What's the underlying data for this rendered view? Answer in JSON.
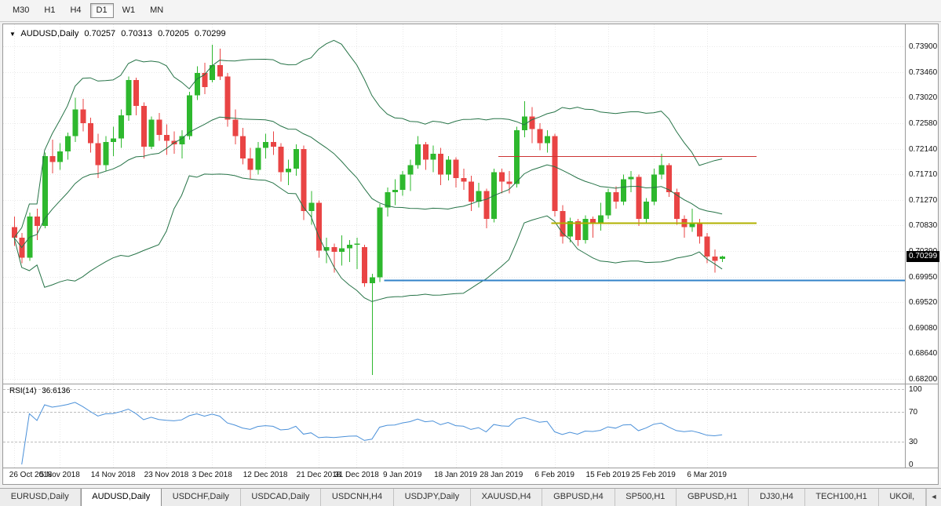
{
  "toolbar": {
    "timeframes": [
      {
        "label": "M30",
        "active": false
      },
      {
        "label": "H1",
        "active": false
      },
      {
        "label": "H4",
        "active": false
      },
      {
        "label": "D1",
        "active": true
      },
      {
        "label": "W1",
        "active": false
      },
      {
        "label": "MN",
        "active": false
      }
    ]
  },
  "chart_title": {
    "dropdown_icon": "▼",
    "symbol": "AUDUSD,Daily",
    "open": "0.70257",
    "high": "0.70313",
    "low": "0.70205",
    "close": "0.70299"
  },
  "chart_data": {
    "type": "candlestick",
    "symbol": "AUDUSD",
    "timeframe": "Daily",
    "price_range": {
      "top": 0.739,
      "bottom": 0.682
    },
    "price_axis_labels": [
      "0.73900",
      "0.73460",
      "0.73020",
      "0.72580",
      "0.72140",
      "0.71710",
      "0.71270",
      "0.70830",
      "0.70390",
      "0.69950",
      "0.69520",
      "0.69080",
      "0.68640",
      "0.68200"
    ],
    "current_price": "0.70299",
    "x_labels": [
      [
        0,
        "26 Oct 2018"
      ],
      [
        6,
        "5 Nov 2018"
      ],
      [
        13,
        "14 Nov 2018"
      ],
      [
        20,
        "23 Nov 2018"
      ],
      [
        26,
        "3 Dec 2018"
      ],
      [
        33,
        "12 Dec 2018"
      ],
      [
        40,
        "21 Dec 2018"
      ],
      [
        45,
        "31 Dec 2018"
      ],
      [
        51,
        "9 Jan 2019"
      ],
      [
        58,
        "18 Jan 2019"
      ],
      [
        64,
        "28 Jan 2019"
      ],
      [
        71,
        "6 Feb 2019"
      ],
      [
        78,
        "15 Feb 2019"
      ],
      [
        84,
        "25 Feb 2019"
      ],
      [
        91,
        "6 Mar 2019"
      ]
    ],
    "ohlc": [
      [
        0.708,
        0.7098,
        0.7048,
        0.7062
      ],
      [
        0.7062,
        0.707,
        0.7018,
        0.7028
      ],
      [
        0.7028,
        0.7105,
        0.7022,
        0.7098
      ],
      [
        0.7098,
        0.7112,
        0.7058,
        0.7082
      ],
      [
        0.7082,
        0.7208,
        0.7078,
        0.7202
      ],
      [
        0.7202,
        0.723,
        0.7172,
        0.7192
      ],
      [
        0.7192,
        0.7224,
        0.7178,
        0.721
      ],
      [
        0.721,
        0.7242,
        0.7196,
        0.7236
      ],
      [
        0.7236,
        0.7302,
        0.7226,
        0.7282
      ],
      [
        0.7282,
        0.73,
        0.7244,
        0.7258
      ],
      [
        0.7258,
        0.7268,
        0.7208,
        0.7224
      ],
      [
        0.7224,
        0.724,
        0.7164,
        0.7186
      ],
      [
        0.7186,
        0.7236,
        0.7176,
        0.7226
      ],
      [
        0.7226,
        0.7252,
        0.7202,
        0.7232
      ],
      [
        0.7232,
        0.7282,
        0.7216,
        0.7272
      ],
      [
        0.7272,
        0.7338,
        0.7262,
        0.7332
      ],
      [
        0.7332,
        0.7336,
        0.7272,
        0.7288
      ],
      [
        0.7288,
        0.7294,
        0.7198,
        0.7218
      ],
      [
        0.7218,
        0.727,
        0.7214,
        0.7264
      ],
      [
        0.7264,
        0.7276,
        0.7228,
        0.7238
      ],
      [
        0.7238,
        0.7256,
        0.7204,
        0.7228
      ],
      [
        0.7228,
        0.7244,
        0.7206,
        0.7222
      ],
      [
        0.7222,
        0.7246,
        0.7198,
        0.7236
      ],
      [
        0.7236,
        0.7312,
        0.723,
        0.7306
      ],
      [
        0.7306,
        0.7356,
        0.7298,
        0.7344
      ],
      [
        0.7344,
        0.7362,
        0.7308,
        0.732
      ],
      [
        0.7332,
        0.7393,
        0.7328,
        0.7358
      ],
      [
        0.7358,
        0.7386,
        0.7332,
        0.7338
      ],
      [
        0.7338,
        0.7344,
        0.7252,
        0.7264
      ],
      [
        0.7264,
        0.7282,
        0.7222,
        0.7236
      ],
      [
        0.7236,
        0.725,
        0.7188,
        0.7198
      ],
      [
        0.7198,
        0.7216,
        0.7162,
        0.7178
      ],
      [
        0.7178,
        0.7226,
        0.717,
        0.7216
      ],
      [
        0.7216,
        0.724,
        0.7198,
        0.7226
      ],
      [
        0.7226,
        0.7244,
        0.7204,
        0.7218
      ],
      [
        0.7218,
        0.7224,
        0.7158,
        0.7174
      ],
      [
        0.7174,
        0.7196,
        0.7152,
        0.718
      ],
      [
        0.718,
        0.7222,
        0.7168,
        0.7214
      ],
      [
        0.7214,
        0.722,
        0.7092,
        0.7108
      ],
      [
        0.7108,
        0.7142,
        0.7084,
        0.7122
      ],
      [
        0.7122,
        0.7126,
        0.7028,
        0.704
      ],
      [
        0.704,
        0.7062,
        0.7018,
        0.7046
      ],
      [
        0.7046,
        0.7052,
        0.7002,
        0.7038
      ],
      [
        0.7038,
        0.7066,
        0.7014,
        0.7044
      ],
      [
        0.7044,
        0.7058,
        0.702,
        0.705
      ],
      [
        0.705,
        0.7062,
        0.7008,
        0.7052
      ],
      [
        0.7046,
        0.705,
        0.6978,
        0.6984
      ],
      [
        0.6984,
        0.7,
        0.6827,
        0.6994
      ],
      [
        0.6994,
        0.712,
        0.6986,
        0.7114
      ],
      [
        0.7114,
        0.7148,
        0.7098,
        0.714
      ],
      [
        0.714,
        0.7162,
        0.7118,
        0.7144
      ],
      [
        0.7144,
        0.7176,
        0.7134,
        0.717
      ],
      [
        0.717,
        0.7196,
        0.7142,
        0.7186
      ],
      [
        0.7186,
        0.7236,
        0.718,
        0.7222
      ],
      [
        0.7222,
        0.7226,
        0.7178,
        0.7196
      ],
      [
        0.7196,
        0.722,
        0.7174,
        0.7206
      ],
      [
        0.7206,
        0.7216,
        0.7152,
        0.717
      ],
      [
        0.717,
        0.7202,
        0.716,
        0.7196
      ],
      [
        0.7196,
        0.72,
        0.7148,
        0.7164
      ],
      [
        0.7164,
        0.718,
        0.7144,
        0.7158
      ],
      [
        0.7158,
        0.7168,
        0.7108,
        0.7124
      ],
      [
        0.7124,
        0.7156,
        0.7114,
        0.7142
      ],
      [
        0.7142,
        0.7146,
        0.7078,
        0.7094
      ],
      [
        0.7094,
        0.718,
        0.7088,
        0.7174
      ],
      [
        0.7174,
        0.718,
        0.7138,
        0.7158
      ],
      [
        0.7158,
        0.7176,
        0.7138,
        0.7154
      ],
      [
        0.7154,
        0.7252,
        0.7148,
        0.7246
      ],
      [
        0.7246,
        0.7296,
        0.7234,
        0.727
      ],
      [
        0.727,
        0.7286,
        0.7224,
        0.7248
      ],
      [
        0.7248,
        0.7258,
        0.7212,
        0.7224
      ],
      [
        0.7224,
        0.7246,
        0.7208,
        0.7236
      ],
      [
        0.7236,
        0.724,
        0.7098,
        0.7108
      ],
      [
        0.7108,
        0.7118,
        0.7052,
        0.7064
      ],
      [
        0.7064,
        0.7096,
        0.7054,
        0.709
      ],
      [
        0.709,
        0.7094,
        0.7048,
        0.7058
      ],
      [
        0.7058,
        0.71,
        0.7052,
        0.7094
      ],
      [
        0.7094,
        0.7098,
        0.7062,
        0.7088
      ],
      [
        0.7088,
        0.7122,
        0.7074,
        0.71
      ],
      [
        0.71,
        0.7146,
        0.7094,
        0.714
      ],
      [
        0.714,
        0.715,
        0.7112,
        0.7124
      ],
      [
        0.7124,
        0.717,
        0.7118,
        0.7162
      ],
      [
        0.7162,
        0.7176,
        0.714,
        0.7166
      ],
      [
        0.7166,
        0.717,
        0.7082,
        0.7094
      ],
      [
        0.7094,
        0.713,
        0.7088,
        0.7124
      ],
      [
        0.7124,
        0.718,
        0.7118,
        0.717
      ],
      [
        0.717,
        0.7206,
        0.7162,
        0.7186
      ],
      [
        0.7186,
        0.719,
        0.7132,
        0.714
      ],
      [
        0.714,
        0.7146,
        0.7084,
        0.7094
      ],
      [
        0.7094,
        0.71,
        0.7062,
        0.708
      ],
      [
        0.708,
        0.7112,
        0.7072,
        0.7088
      ],
      [
        0.7088,
        0.7094,
        0.7052,
        0.7064
      ],
      [
        0.7064,
        0.707,
        0.7018,
        0.703
      ],
      [
        0.703,
        0.7042,
        0.7002,
        0.7022
      ],
      [
        0.70257,
        0.70313,
        0.70205,
        0.70299
      ]
    ],
    "bollinger": {
      "period": 20,
      "deviations": 2,
      "color": "#267347"
    },
    "hlines": [
      {
        "color": "#cc3333",
        "width": 1,
        "price": 0.7202,
        "from_index": 64,
        "to_index": 97.5
      },
      {
        "color": "#b0b000",
        "width": 2,
        "price": 0.7088,
        "from_index": 71,
        "to_index": 97.5
      },
      {
        "color": "#3383c8",
        "width": 2,
        "price": 0.699,
        "from_index": 49,
        "to_index": "edge"
      }
    ],
    "rsi": {
      "label": "RSI(14)",
      "value": "36.6136",
      "period": 14,
      "color": "#4a90d9",
      "levels": [
        100,
        70,
        30,
        0
      ],
      "dashed_levels": [
        100,
        70,
        30
      ]
    },
    "colors": {
      "up": "#2eb82e",
      "down": "#e94444",
      "grid": "#e9e9e9",
      "level_dash": "#bdbdbd",
      "badge_bg": "#000000",
      "badge_text": "#ffffff"
    }
  },
  "tabbar": {
    "tabs": [
      {
        "label": "EURUSD,Daily",
        "active": false
      },
      {
        "label": "AUDUSD,Daily",
        "active": true
      },
      {
        "label": "USDCHF,Daily",
        "active": false
      },
      {
        "label": "USDCAD,Daily",
        "active": false
      },
      {
        "label": "USDCNH,H4",
        "active": false
      },
      {
        "label": "USDJPY,Daily",
        "active": false
      },
      {
        "label": "XAUUSD,H4",
        "active": false
      },
      {
        "label": "GBPUSD,H4",
        "active": false
      },
      {
        "label": "SP500,H1",
        "active": false
      },
      {
        "label": "GBPUSD,H1",
        "active": false
      },
      {
        "label": "DJ30,H4",
        "active": false
      },
      {
        "label": "TECH100,H1",
        "active": false
      },
      {
        "label": "UKOil,",
        "active": false
      }
    ],
    "scroll_icon": "◄"
  }
}
